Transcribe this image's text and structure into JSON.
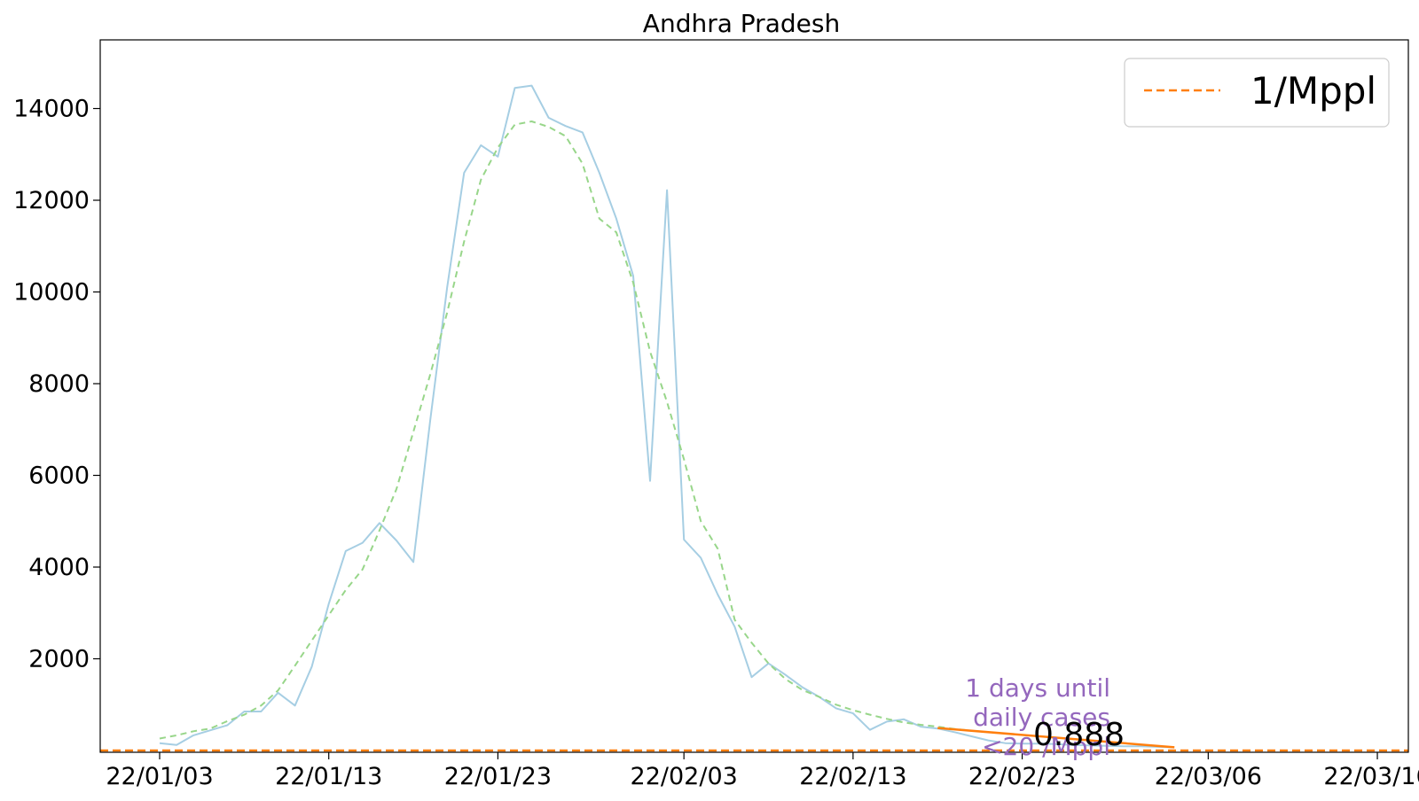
{
  "chart_data": {
    "type": "line",
    "title": "Andhra Pradesh",
    "xlabel": "",
    "ylabel": "",
    "x_axis": {
      "type": "date",
      "range": [
        "22/01/-",
        "22/03/19"
      ],
      "tick_labels": [
        "22/01/03",
        "22/01/13",
        "22/01/23",
        "22/02/03",
        "22/02/13",
        "22/02/23",
        "22/03/06",
        "22/03/16"
      ]
    },
    "ylim": [
      0,
      15200
    ],
    "y_ticks": [
      2000,
      4000,
      6000,
      8000,
      10000,
      12000,
      14000
    ],
    "y_tick_labels": [
      "2000",
      "4000",
      "6000",
      "8000",
      "10000",
      "12000",
      "14000"
    ],
    "grid": false,
    "legend": {
      "placement": "top-right",
      "entries": [
        {
          "label": "1/Mppl",
          "color": "#ff7f0e",
          "style": "dashed"
        }
      ]
    },
    "series": [
      {
        "role": "daily-cases",
        "color": "#a6cee3",
        "style": "solid",
        "x": [
          "2022-01-03",
          "2022-01-04",
          "2022-01-05",
          "2022-01-06",
          "2022-01-07",
          "2022-01-08",
          "2022-01-09",
          "2022-01-10",
          "2022-01-11",
          "2022-01-12",
          "2022-01-13",
          "2022-01-14",
          "2022-01-15",
          "2022-01-16",
          "2022-01-17",
          "2022-01-18",
          "2022-01-19",
          "2022-01-20",
          "2022-01-21",
          "2022-01-22",
          "2022-01-23",
          "2022-01-24",
          "2022-01-25",
          "2022-01-26",
          "2022-01-27",
          "2022-01-28",
          "2022-01-29",
          "2022-01-30",
          "2022-01-31",
          "2022-02-01",
          "2022-02-02",
          "2022-02-03",
          "2022-02-04",
          "2022-02-05",
          "2022-02-06",
          "2022-02-07",
          "2022-02-08",
          "2022-02-09",
          "2022-02-10",
          "2022-02-11",
          "2022-02-12",
          "2022-02-13",
          "2022-02-14",
          "2022-02-15",
          "2022-02-16",
          "2022-02-17",
          "2022-02-18",
          "2022-02-19",
          "2022-02-20",
          "2022-02-21",
          "2022-02-22",
          "2022-02-23",
          "2022-02-24",
          "2022-02-25",
          "2022-02-26",
          "2022-02-27",
          "2022-02-28",
          "2022-03-01",
          "2022-03-02",
          "2022-03-03",
          "2022-03-04"
        ],
        "values": [
          160,
          120,
          330,
          440,
          550,
          850,
          850,
          1260,
          980,
          1830,
          3200,
          4350,
          4530,
          4960,
          4580,
          4110,
          7200,
          10100,
          12600,
          13200,
          12950,
          14450,
          14500,
          13800,
          13620,
          13480,
          12600,
          11600,
          10350,
          5880,
          12220,
          4600,
          4200,
          3400,
          2700,
          1600,
          1900,
          1650,
          1380,
          1170,
          920,
          810,
          450,
          630,
          680,
          520,
          480,
          400,
          310,
          220,
          160,
          150,
          150,
          140,
          120,
          110,
          100,
          90,
          90,
          80,
          70
        ]
      },
      {
        "role": "smoothed-average",
        "color": "#98d68a",
        "style": "dashed",
        "x": [
          "2022-01-03",
          "2022-01-04",
          "2022-01-05",
          "2022-01-06",
          "2022-01-07",
          "2022-01-08",
          "2022-01-09",
          "2022-01-10",
          "2022-01-11",
          "2022-01-12",
          "2022-01-13",
          "2022-01-14",
          "2022-01-15",
          "2022-01-16",
          "2022-01-17",
          "2022-01-18",
          "2022-01-19",
          "2022-01-20",
          "2022-01-21",
          "2022-01-22",
          "2022-01-23",
          "2022-01-24",
          "2022-01-25",
          "2022-01-26",
          "2022-01-27",
          "2022-01-28",
          "2022-01-29",
          "2022-01-30",
          "2022-01-31",
          "2022-02-01",
          "2022-02-02",
          "2022-02-03",
          "2022-02-04",
          "2022-02-05",
          "2022-02-06",
          "2022-02-07",
          "2022-02-08",
          "2022-02-09",
          "2022-02-10",
          "2022-02-11",
          "2022-02-12",
          "2022-02-13",
          "2022-02-14",
          "2022-02-15",
          "2022-02-16",
          "2022-02-17",
          "2022-02-18",
          "2022-02-19",
          "2022-02-20"
        ],
        "values": [
          260,
          330,
          420,
          480,
          640,
          780,
          980,
          1310,
          1850,
          2400,
          2950,
          3500,
          3950,
          4800,
          5700,
          6950,
          8200,
          9550,
          11100,
          12450,
          13150,
          13650,
          13720,
          13600,
          13400,
          12800,
          11600,
          11300,
          10200,
          8700,
          7600,
          6350,
          5000,
          4400,
          2850,
          2350,
          1900,
          1560,
          1320,
          1170,
          1000,
          880,
          780,
          690,
          610,
          560,
          520,
          470,
          430
        ]
      },
      {
        "role": "projection",
        "color": "#ff7f0e",
        "style": "solid",
        "x": [
          "2022-02-18",
          "2022-03-04"
        ],
        "values": [
          490,
          70
        ]
      },
      {
        "role": "threshold",
        "name": "1/Mppl",
        "color": "#ff7f0e",
        "style": "dashed",
        "x": [
          "2022-01-03",
          "2022-03-16"
        ],
        "values": [
          0,
          0
        ]
      }
    ],
    "annotations": [
      {
        "text": "1 days until\ndaily cases\n<20 /Mppl",
        "color": "#9467bd"
      },
      {
        "text": "0.888",
        "color": "#ff7f0e"
      }
    ]
  }
}
